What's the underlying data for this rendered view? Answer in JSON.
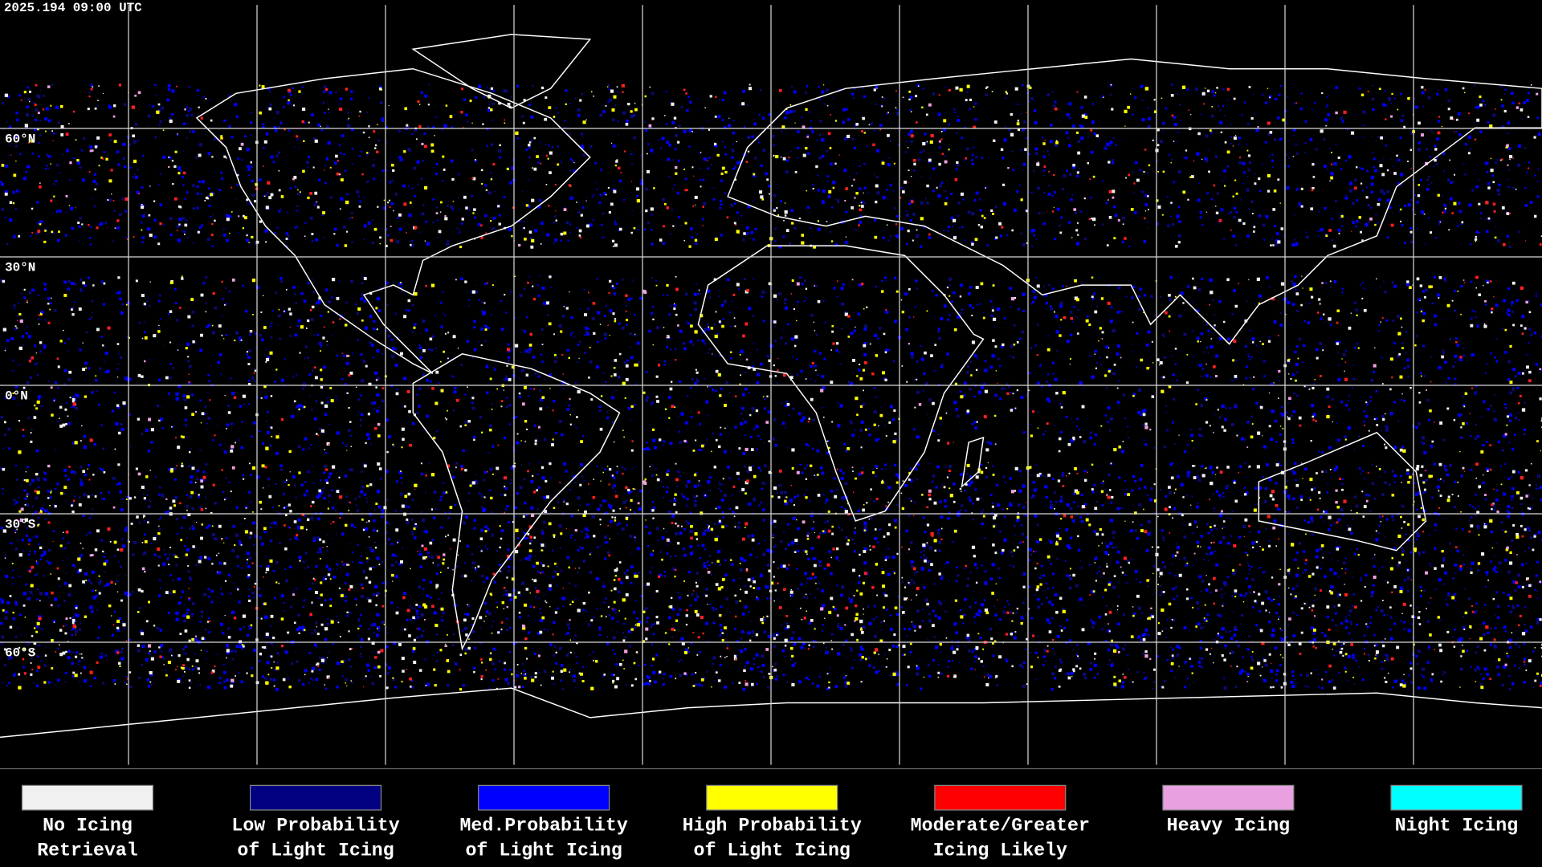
{
  "header": {
    "timestamp": "2025.194 09:00 UTC"
  },
  "map": {
    "lat_labels": [
      "60°N",
      "30°N",
      "0°N",
      "30°S",
      "60°S"
    ]
  },
  "legend": {
    "items": [
      {
        "lines": [
          "No Icing",
          "Retrieval"
        ],
        "color": "#f0f0f0"
      },
      {
        "lines": [
          "Low Probability",
          "of Light Icing"
        ],
        "color": "#000080"
      },
      {
        "lines": [
          "Med.Probability",
          "of Light Icing"
        ],
        "color": "#0000ff"
      },
      {
        "lines": [
          "High Probability",
          "of Light Icing"
        ],
        "color": "#ffff00"
      },
      {
        "lines": [
          "Moderate/Greater",
          "Icing Likely"
        ],
        "color": "#ff0000"
      },
      {
        "lines": [
          "Heavy Icing"
        ],
        "color": "#e8a0e0"
      },
      {
        "lines": [
          "Night Icing"
        ],
        "color": "#00ffff"
      }
    ]
  }
}
